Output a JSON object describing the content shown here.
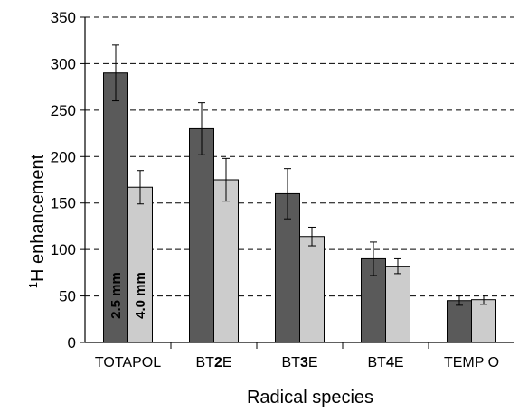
{
  "chart_data": {
    "type": "bar",
    "xlabel": "Radical species",
    "ylabel": "1H enhancement",
    "ylabel_parts": {
      "superscript": "1",
      "main": "H enhancement"
    },
    "ylim": [
      0,
      350
    ],
    "yticks": [
      0,
      50,
      100,
      150,
      200,
      250,
      300,
      350
    ],
    "grid": "horizontal dashed",
    "categories": [
      {
        "plain": "BT",
        "bold": "",
        "suffix": "",
        "full": "TOTAPOL",
        "parts": [
          {
            "t": "TOTAPOL",
            "b": false
          }
        ]
      },
      {
        "full": "BT2E",
        "parts": [
          {
            "t": "BT",
            "b": false
          },
          {
            "t": "2",
            "b": true
          },
          {
            "t": "E",
            "b": false
          }
        ]
      },
      {
        "full": "BT3E",
        "parts": [
          {
            "t": "BT",
            "b": false
          },
          {
            "t": "3",
            "b": true
          },
          {
            "t": "E",
            "b": false
          }
        ]
      },
      {
        "full": "BT4E",
        "parts": [
          {
            "t": "BT",
            "b": false
          },
          {
            "t": "4",
            "b": true
          },
          {
            "t": "E",
            "b": false
          }
        ]
      },
      {
        "full": "TEMPO",
        "parts": [
          {
            "t": "TEMP O",
            "b": false
          }
        ]
      }
    ],
    "series": [
      {
        "name": "2.5 mm",
        "color": "#5a5a5a",
        "values": [
          290,
          230,
          160,
          90,
          45
        ],
        "errors": [
          30,
          28,
          27,
          18,
          5
        ]
      },
      {
        "name": "4.0 mm",
        "color": "#cccccc",
        "values": [
          167,
          175,
          114,
          82,
          46
        ],
        "errors": [
          18,
          23,
          10,
          8,
          5
        ]
      }
    ]
  }
}
